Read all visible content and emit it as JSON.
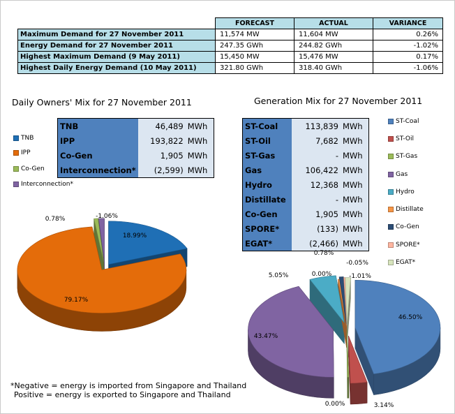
{
  "summary": {
    "headers": [
      "FORECAST",
      "ACTUAL",
      "VARIANCE"
    ],
    "rows": [
      {
        "label": "Maximum Demand for 27 November 2011",
        "forecast": "11,574 MW",
        "actual": "11,604 MW",
        "variance": "0.26%"
      },
      {
        "label": "Energy Demand for 27 November 2011",
        "forecast": "247.35 GWh",
        "actual": "244.82 GWh",
        "variance": "-1.02%"
      },
      {
        "label": "Highest Maximum Demand (9 May 2011)",
        "forecast": "15,450 MW",
        "actual": "15,476 MW",
        "variance": "0.17%"
      },
      {
        "label": "Highest Daily Energy Demand (10 May 2011)",
        "forecast": "321.80 GWh",
        "actual": "318.40 GWh",
        "variance": "-1.06%"
      }
    ]
  },
  "owners_mix": {
    "table": [
      {
        "label": "TNB",
        "value": "46,489",
        "unit": "MWh"
      },
      {
        "label": "IPP",
        "value": "193,822",
        "unit": "MWh"
      },
      {
        "label": "Co-Gen",
        "value": "1,905",
        "unit": "MWh"
      },
      {
        "label": "Interconnection*",
        "value": "(2,599)",
        "unit": "MWh"
      }
    ]
  },
  "generation_mix": {
    "table": [
      {
        "label": "ST-Coal",
        "value": "113,839",
        "unit": "MWh"
      },
      {
        "label": "ST-Oil",
        "value": "7,682",
        "unit": "MWh"
      },
      {
        "label": "ST-Gas",
        "value": "-",
        "unit": "MWh"
      },
      {
        "label": "Gas",
        "value": "106,422",
        "unit": "MWh"
      },
      {
        "label": "Hydro",
        "value": "12,368",
        "unit": "MWh"
      },
      {
        "label": "Distillate",
        "value": "-",
        "unit": "MWh"
      },
      {
        "label": "Co-Gen",
        "value": "1,905",
        "unit": "MWh"
      },
      {
        "label": "SPORE*",
        "value": "(133)",
        "unit": "MWh"
      },
      {
        "label": "EGAT*",
        "value": "(2,466)",
        "unit": "MWh"
      }
    ]
  },
  "footnote": {
    "line1": "*Negative = energy is imported from Singapore and Thailand",
    "line2": "Positive = energy is exported to Singapore and Thailand"
  },
  "chart_data": [
    {
      "type": "pie",
      "title": "Daily Owners' Mix for 27 November 2011",
      "legend_position": "left",
      "slices": [
        {
          "name": "TNB",
          "value": 18.99,
          "label": "18.99%",
          "color": "#1f6fb5"
        },
        {
          "name": "IPP",
          "value": 79.17,
          "label": "79.17%",
          "color": "#e46c0a"
        },
        {
          "name": "Co-Gen",
          "value": 0.78,
          "label": "0.78%",
          "color": "#9bbb59"
        },
        {
          "name": "Interconnection*",
          "value": -1.06,
          "label": "-1.06%",
          "color": "#8064a2"
        }
      ]
    },
    {
      "type": "pie",
      "title": "Generation Mix for 27 November 2011",
      "legend_position": "right",
      "slices": [
        {
          "name": "ST-Coal",
          "value": 46.5,
          "label": "46.50%",
          "color": "#4f81bd"
        },
        {
          "name": "ST-Oil",
          "value": 3.14,
          "label": "3.14%",
          "color": "#c0504d"
        },
        {
          "name": "ST-Gas",
          "value": 0.0,
          "label": "0.00%",
          "color": "#9bbb59"
        },
        {
          "name": "Gas",
          "value": 43.47,
          "label": "43.47%",
          "color": "#8064a2"
        },
        {
          "name": "Hydro",
          "value": 5.05,
          "label": "5.05%",
          "color": "#4bacc6"
        },
        {
          "name": "Distillate",
          "value": 0.0,
          "label": "0.00%",
          "color": "#f79646"
        },
        {
          "name": "Co-Gen",
          "value": 0.78,
          "label": "0.78%",
          "color": "#2c4d75"
        },
        {
          "name": "SPORE*",
          "value": -0.05,
          "label": "-0.05%",
          "color": "#ffb6a0"
        },
        {
          "name": "EGAT*",
          "value": -1.01,
          "label": "-1.01%",
          "color": "#d7e4bd"
        }
      ]
    }
  ]
}
